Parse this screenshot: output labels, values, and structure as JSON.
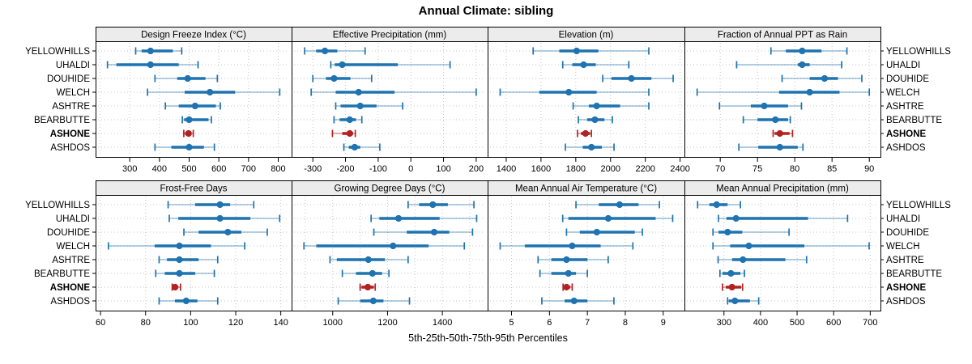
{
  "title": "Annual Climate: sibling",
  "xlabel": "5th-25th-50th-75th-95th Percentiles",
  "sites": [
    "YELLOWHILLS",
    "UHALDI",
    "DOUHIDE",
    "WELCH",
    "ASHTRE",
    "BEARBUTTE",
    "ASHONE",
    "ASHDOS"
  ],
  "highlight_site": "ASHONE",
  "colors": {
    "series": "#1e73b0",
    "series_whisker": "rgba(30,115,176,0.45)",
    "highlight": "#b22222",
    "highlight_whisker": "rgba(178,34,34,0.5)",
    "grid": "#c6c6c6",
    "strip_bg": "#ececec",
    "panel_border": "#000000",
    "text": "#000000"
  },
  "chart_data": {
    "type": "dotplot",
    "title": "Annual Climate: sibling",
    "xlabel": "5th-25th-50th-75th-95th Percentiles",
    "percentiles": [
      "5th",
      "25th",
      "50th",
      "75th",
      "95th"
    ],
    "layout": "2 rows x 4 columns, free x scales, shared site y-axis, dotted grid, labels on both sides",
    "panels": [
      {
        "title": "Design Freeze Index (°C)",
        "row": 0,
        "col": 0,
        "ticks": [
          300,
          400,
          500,
          600,
          700,
          800
        ],
        "grid": [
          200,
          300,
          400,
          500,
          600,
          700,
          800
        ],
        "domain": [
          185,
          845
        ],
        "series": [
          {
            "name": "YELLOWHILLS",
            "values": [
              320,
              340,
              370,
              445,
              475
            ]
          },
          {
            "name": "UHALDI",
            "values": [
              225,
              255,
              370,
              465,
              530
            ]
          },
          {
            "name": "DOUHIDE",
            "values": [
              385,
              460,
              495,
              555,
              595
            ]
          },
          {
            "name": "WELCH",
            "values": [
              360,
              485,
              570,
              655,
              805
            ]
          },
          {
            "name": "ASHTRE",
            "values": [
              420,
              465,
              520,
              590,
              605
            ]
          },
          {
            "name": "BEARBUTTE",
            "values": [
              477,
              483,
              500,
              565,
              575
            ]
          },
          {
            "name": "ASHONE",
            "values": [
              482,
              486,
              498,
              507,
              514
            ]
          },
          {
            "name": "ASHDOS",
            "values": [
              385,
              440,
              500,
              550,
              585
            ]
          }
        ]
      },
      {
        "title": "Effective Precipitation (mm)",
        "row": 0,
        "col": 1,
        "ticks": [
          -300,
          -200,
          -100,
          0,
          100,
          200
        ],
        "grid": [
          -300,
          -200,
          -100,
          0,
          100,
          200
        ],
        "domain": [
          -365,
          235
        ],
        "series": [
          {
            "name": "YELLOWHILLS",
            "values": [
              -325,
              -290,
              -263,
              -225,
              -140
            ]
          },
          {
            "name": "UHALDI",
            "values": [
              -245,
              -233,
              -210,
              -40,
              120
            ]
          },
          {
            "name": "DOUHIDE",
            "values": [
              -300,
              -260,
              -235,
              -185,
              -120
            ]
          },
          {
            "name": "WELCH",
            "values": [
              -305,
              -230,
              -160,
              -50,
              200
            ]
          },
          {
            "name": "ASHTRE",
            "values": [
              -230,
              -215,
              -155,
              -105,
              -25
            ]
          },
          {
            "name": "BEARBUTTE",
            "values": [
              -235,
              -218,
              -187,
              -168,
              -150
            ]
          },
          {
            "name": "ASHONE",
            "values": [
              -240,
              -210,
              -187,
              -177,
              -170
            ]
          },
          {
            "name": "ASHDOS",
            "values": [
              -205,
              -190,
              -172,
              -155,
              -95
            ]
          }
        ]
      },
      {
        "title": "Elevation (m)",
        "row": 0,
        "col": 2,
        "ticks": [
          1400,
          1600,
          1800,
          2000,
          2200,
          2400
        ],
        "grid": [
          1400,
          1600,
          1800,
          2000,
          2200,
          2400
        ],
        "domain": [
          1293,
          2425
        ],
        "series": [
          {
            "name": "YELLOWHILLS",
            "values": [
              1555,
              1705,
              1805,
              1930,
              2220
            ]
          },
          {
            "name": "UHALDI",
            "values": [
              1725,
              1780,
              1845,
              1915,
              2105
            ]
          },
          {
            "name": "DOUHIDE",
            "values": [
              1955,
              2005,
              2120,
              2235,
              2360
            ]
          },
          {
            "name": "WELCH",
            "values": [
              1365,
              1590,
              1760,
              1920,
              2220
            ]
          },
          {
            "name": "ASHTRE",
            "values": [
              1785,
              1875,
              1920,
              2055,
              2220
            ]
          },
          {
            "name": "BEARBUTTE",
            "values": [
              1815,
              1865,
              1910,
              1965,
              2010
            ]
          },
          {
            "name": "ASHONE",
            "values": [
              1810,
              1830,
              1856,
              1882,
              1890
            ]
          },
          {
            "name": "ASHDOS",
            "values": [
              1740,
              1840,
              1890,
              1950,
              2020
            ]
          }
        ]
      },
      {
        "title": "Fraction of Annual PPT as Rain",
        "row": 0,
        "col": 3,
        "ticks": [
          70,
          75,
          80,
          85,
          90
        ],
        "grid": [
          70,
          75,
          80,
          85,
          90
        ],
        "domain": [
          65.2,
          91.5
        ],
        "series": [
          {
            "name": "YELLOWHILLS",
            "values": [
              76.8,
              78.8,
              81,
              83.6,
              87
            ]
          },
          {
            "name": "UHALDI",
            "values": [
              72.2,
              80.4,
              81,
              82,
              86.3
            ]
          },
          {
            "name": "DOUHIDE",
            "values": [
              78.3,
              82,
              84,
              85.8,
              89
            ]
          },
          {
            "name": "WELCH",
            "values": [
              66.9,
              77.9,
              82,
              86,
              90
            ]
          },
          {
            "name": "ASHTRE",
            "values": [
              69.9,
              74.1,
              75.9,
              79.1,
              80.9
            ]
          },
          {
            "name": "BEARBUTTE",
            "values": [
              73.1,
              75,
              77.4,
              79.1,
              79.4
            ]
          },
          {
            "name": "ASHONE",
            "values": [
              77.1,
              77.3,
              78,
              79.3,
              79.7
            ]
          },
          {
            "name": "ASHDOS",
            "values": [
              72.5,
              75.1,
              78,
              80.4,
              81.1
            ]
          }
        ]
      },
      {
        "title": "Frost-Free Days",
        "row": 1,
        "col": 0,
        "ticks": [
          60,
          80,
          100,
          120,
          140
        ],
        "grid": [
          60,
          80,
          100,
          120,
          140
        ],
        "domain": [
          57.8,
          144.8
        ],
        "series": [
          {
            "name": "YELLOWHILLS",
            "values": [
              90,
              102,
              113,
              117.5,
              128
            ]
          },
          {
            "name": "UHALDI",
            "values": [
              90.5,
              94.5,
              113,
              126.5,
              139.5
            ]
          },
          {
            "name": "DOUHIDE",
            "values": [
              97,
              103.5,
              116.5,
              122.5,
              134
            ]
          },
          {
            "name": "WELCH",
            "values": [
              63.5,
              84,
              95,
              109,
              124
            ]
          },
          {
            "name": "ASHTRE",
            "values": [
              86,
              89.5,
              95,
              103.5,
              112
            ]
          },
          {
            "name": "BEARBUTTE",
            "values": [
              84.5,
              88.5,
              95,
              102,
              110.5
            ]
          },
          {
            "name": "ASHONE",
            "values": [
              91.8,
              92.3,
              93.1,
              94.3,
              95.5
            ]
          },
          {
            "name": "ASHDOS",
            "values": [
              86,
              93,
              98,
              103,
              112
            ]
          }
        ]
      },
      {
        "title": "Growing Degree Days (°C)",
        "row": 1,
        "col": 1,
        "ticks": [
          1000,
          1200,
          1400
        ],
        "grid": [
          900,
          1000,
          1100,
          1200,
          1300,
          1400,
          1500
        ],
        "domain": [
          850,
          1565
        ],
        "series": [
          {
            "name": "YELLOWHILLS",
            "values": [
              1275,
              1315,
              1365,
              1420,
              1515
            ]
          },
          {
            "name": "UHALDI",
            "values": [
              1140,
              1170,
              1240,
              1390,
              1525
            ]
          },
          {
            "name": "DOUHIDE",
            "values": [
              1150,
              1270,
              1370,
              1425,
              1510
            ]
          },
          {
            "name": "WELCH",
            "values": [
              895,
              940,
              1220,
              1350,
              1480
            ]
          },
          {
            "name": "ASHTRE",
            "values": [
              990,
              1015,
              1130,
              1190,
              1275
            ]
          },
          {
            "name": "BEARBUTTE",
            "values": [
              1035,
              1085,
              1145,
              1180,
              1205
            ]
          },
          {
            "name": "ASHONE",
            "values": [
              1100,
              1105,
              1128,
              1150,
              1155
            ]
          },
          {
            "name": "ASHDOS",
            "values": [
              1020,
              1100,
              1148,
              1185,
              1280
            ]
          }
        ]
      },
      {
        "title": "Mean Annual Air Temperature (°C)",
        "row": 1,
        "col": 2,
        "ticks": [
          5,
          6,
          7,
          8,
          9
        ],
        "grid": [
          5,
          6,
          7,
          8,
          9
        ],
        "domain": [
          4.37,
          9.56
        ],
        "series": [
          {
            "name": "YELLOWHILLS",
            "values": [
              6.7,
              7.3,
              7.85,
              8.35,
              8.9
            ]
          },
          {
            "name": "UHALDI",
            "values": [
              6.35,
              6.5,
              7.55,
              8.8,
              9.25
            ]
          },
          {
            "name": "DOUHIDE",
            "values": [
              6.45,
              6.8,
              7.25,
              8.25,
              8.45
            ]
          },
          {
            "name": "WELCH",
            "values": [
              4.7,
              5.35,
              6.6,
              7.35,
              8.2
            ]
          },
          {
            "name": "ASHTRE",
            "values": [
              5.7,
              6.05,
              6.45,
              7,
              7.55
            ]
          },
          {
            "name": "BEARBUTTE",
            "values": [
              5.75,
              6.05,
              6.5,
              6.7,
              7
            ]
          },
          {
            "name": "ASHONE",
            "values": [
              6.36,
              6.4,
              6.45,
              6.55,
              6.6
            ]
          },
          {
            "name": "ASHDOS",
            "values": [
              5.8,
              6.4,
              6.65,
              7,
              7.7
            ]
          }
        ]
      },
      {
        "title": "Mean Annual Precipitation (mm)",
        "row": 1,
        "col": 3,
        "ticks": [
          300,
          400,
          500,
          600,
          700
        ],
        "grid": [
          300,
          400,
          500,
          600,
          700
        ],
        "domain": [
          192,
          728
        ],
        "series": [
          {
            "name": "YELLOWHILLS",
            "values": [
              228,
              260,
              280,
              310,
              345
            ]
          },
          {
            "name": "UHALDI",
            "values": [
              285,
              307,
              333,
              530,
              638
            ]
          },
          {
            "name": "DOUHIDE",
            "values": [
              270,
              285,
              310,
              350,
              478
            ]
          },
          {
            "name": "WELCH",
            "values": [
              270,
              317,
              368,
              520,
              697
            ]
          },
          {
            "name": "ASHTRE",
            "values": [
              284,
              322,
              352,
              468,
              526
            ]
          },
          {
            "name": "BEARBUTTE",
            "values": [
              289,
              296,
              319,
              345,
              356
            ]
          },
          {
            "name": "ASHONE",
            "values": [
              296,
              305,
              322,
              347,
              351
            ]
          },
          {
            "name": "ASHDOS",
            "values": [
              310,
              313,
              330,
              371,
              395
            ]
          }
        ]
      }
    ]
  }
}
